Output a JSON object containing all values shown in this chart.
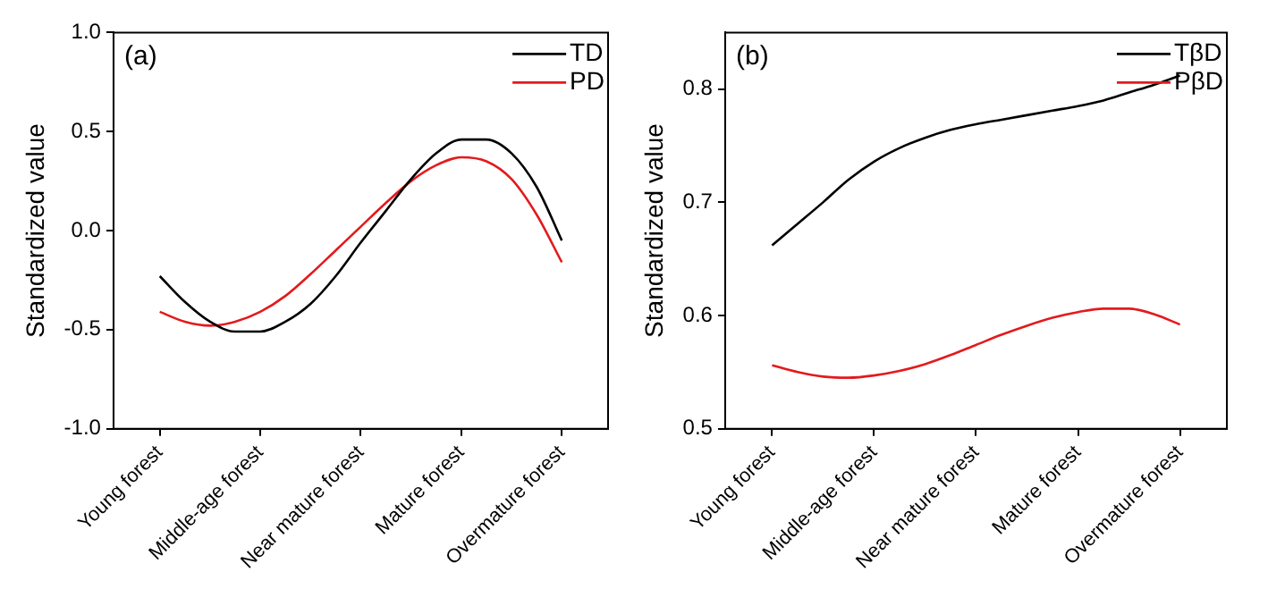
{
  "chart_data": [
    {
      "type": "line",
      "annotations": [
        "(a)"
      ],
      "ylabel": "Standardized value",
      "legend": "top right",
      "grid": false,
      "marker": "none",
      "line_style": "solid",
      "categories": [
        "Young forest",
        null,
        null,
        null,
        "Middle-age forest",
        null,
        null,
        null,
        "Near mature forest",
        null,
        null,
        null,
        "Mature forest",
        null,
        null,
        null,
        "Overmature forest"
      ],
      "ylim": [
        -1.0,
        1.0
      ],
      "yticks": [
        {
          "value": -1,
          "label": "-1.0"
        },
        {
          "value": -0.5,
          "label": "-0.5"
        },
        {
          "value": 0,
          "label": "0.0"
        },
        {
          "value": 0.5,
          "label": "0.5"
        },
        {
          "value": 1,
          "label": "1.0"
        }
      ],
      "series": [
        {
          "name": "TD",
          "color": "#000000",
          "values": [
            -0.23,
            -0.36,
            -0.46,
            -0.51,
            -0.51,
            -0.46,
            -0.37,
            -0.23,
            -0.06,
            0.1,
            0.26,
            0.39,
            0.46,
            0.46,
            0.39,
            0.22,
            -0.05
          ]
        },
        {
          "name": "PD",
          "color": "#e31a1c",
          "values": [
            -0.41,
            -0.46,
            -0.48,
            -0.46,
            -0.41,
            -0.33,
            -0.22,
            -0.1,
            0.02,
            0.14,
            0.25,
            0.33,
            0.37,
            0.35,
            0.26,
            0.08,
            -0.16
          ]
        }
      ]
    },
    {
      "type": "line",
      "annotations": [
        "(b)"
      ],
      "ylabel": "Standardized value",
      "legend": "top right",
      "grid": false,
      "marker": "none",
      "line_style": "solid",
      "categories": [
        "Young forest",
        null,
        null,
        null,
        "Middle-age forest",
        null,
        null,
        null,
        "Near mature forest",
        null,
        null,
        null,
        "Mature forest",
        null,
        null,
        null,
        "Overmature forest"
      ],
      "ylim": [
        0.5,
        0.85
      ],
      "yticks": [
        0.5,
        0.6,
        0.7,
        0.8
      ],
      "series": [
        {
          "name": "TβD",
          "color": "#000000",
          "values": [
            0.662,
            0.681,
            0.7,
            0.72,
            0.736,
            0.748,
            0.757,
            0.764,
            0.769,
            0.773,
            0.777,
            0.781,
            0.785,
            0.79,
            0.797,
            0.804,
            0.812
          ]
        },
        {
          "name": "PβD",
          "color": "#e31a1c",
          "values": [
            0.556,
            0.55,
            0.546,
            0.545,
            0.547,
            0.551,
            0.557,
            0.565,
            0.574,
            0.583,
            0.591,
            0.598,
            0.603,
            0.606,
            0.606,
            0.601,
            0.592
          ]
        }
      ]
    }
  ]
}
